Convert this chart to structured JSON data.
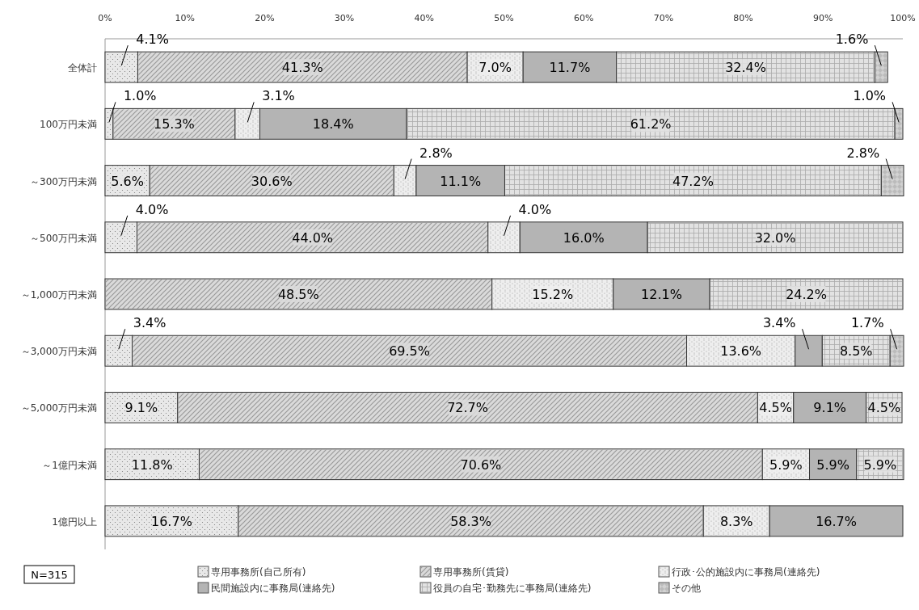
{
  "chart_data": {
    "type": "bar",
    "orientation": "horizontal",
    "stacked": true,
    "categories": [
      "全体計",
      "100万円未満",
      "～300万円未満",
      "～500万円未満",
      "～1,000万円未満",
      "～3,000万円未満",
      "～5,000万円未満",
      "～1億円未満",
      "1億円以上"
    ],
    "series": [
      {
        "name": "専用事務所(自己所有)",
        "color": "#e8e8e8",
        "values": [
          4.1,
          1.0,
          5.6,
          4.0,
          null,
          3.4,
          9.1,
          11.8,
          16.7
        ],
        "value_labels": [
          "4.1%",
          "1.0%",
          "5.6%",
          "4.0%",
          null,
          "3.4%",
          "9.1%",
          "11.8%",
          "16.7%"
        ]
      },
      {
        "name": "専用事務所(賃貸)",
        "color": "#dadada",
        "values": [
          41.3,
          15.3,
          30.6,
          44.0,
          48.5,
          69.5,
          72.7,
          70.6,
          58.3
        ],
        "value_labels": [
          "41.3%",
          "15.3%",
          "30.6%",
          "44.0%",
          "48.5%",
          "69.5%",
          "72.7%",
          "70.6%",
          "58.3%"
        ]
      },
      {
        "name": "行政･公的施設内に事務局(連絡先)",
        "color": "#eeeeee",
        "values": [
          7.0,
          3.1,
          2.8,
          4.0,
          15.2,
          13.6,
          4.5,
          5.9,
          8.3
        ],
        "value_labels": [
          "7.0%",
          "3.1%",
          "2.8%",
          "4.0%",
          "15.2%",
          "13.6%",
          "4.5%",
          "5.9%",
          "8.3%"
        ]
      },
      {
        "name": "民間施設内に事務局(連絡先)",
        "color": "#b4b4b4",
        "values": [
          11.7,
          18.4,
          11.1,
          16.0,
          12.1,
          3.4,
          9.1,
          5.9,
          16.7
        ],
        "value_labels": [
          "11.7%",
          "18.4%",
          "11.1%",
          "16.0%",
          "12.1%",
          "3.4%",
          "9.1%",
          "5.9%",
          "16.7%"
        ]
      },
      {
        "name": "役員の自宅･勤務先に事務局(連絡先)",
        "color": "#e2e2e2",
        "values": [
          32.4,
          61.2,
          47.2,
          32.0,
          24.2,
          8.5,
          4.5,
          5.9,
          null
        ],
        "value_labels": [
          "32.4%",
          "61.2%",
          "47.2%",
          "32.0%",
          "24.2%",
          "8.5%",
          "4.5%",
          "5.9%",
          null
        ]
      },
      {
        "name": "その他",
        "color": "#d2d2d2",
        "values": [
          1.6,
          1.0,
          2.8,
          null,
          null,
          1.7,
          null,
          null,
          null
        ],
        "value_labels": [
          "1.6%",
          "1.0%",
          "2.8%",
          null,
          null,
          "1.7%",
          null,
          null,
          null
        ]
      }
    ],
    "xlim": [
      0,
      100
    ],
    "xticks": [
      {
        "value": 0,
        "label": "0%"
      },
      {
        "value": 10,
        "label": "10%"
      },
      {
        "value": 20,
        "label": "20%"
      },
      {
        "value": 30,
        "label": "30%"
      },
      {
        "value": 40,
        "label": "40%"
      },
      {
        "value": 50,
        "label": "50%"
      },
      {
        "value": 60,
        "label": "60%"
      },
      {
        "value": 70,
        "label": "70%"
      },
      {
        "value": 80,
        "label": "80%"
      },
      {
        "value": 90,
        "label": "90%"
      },
      {
        "value": 100,
        "label": "100%"
      }
    ],
    "legend": "bottom",
    "annotations": [
      "N=315"
    ]
  }
}
